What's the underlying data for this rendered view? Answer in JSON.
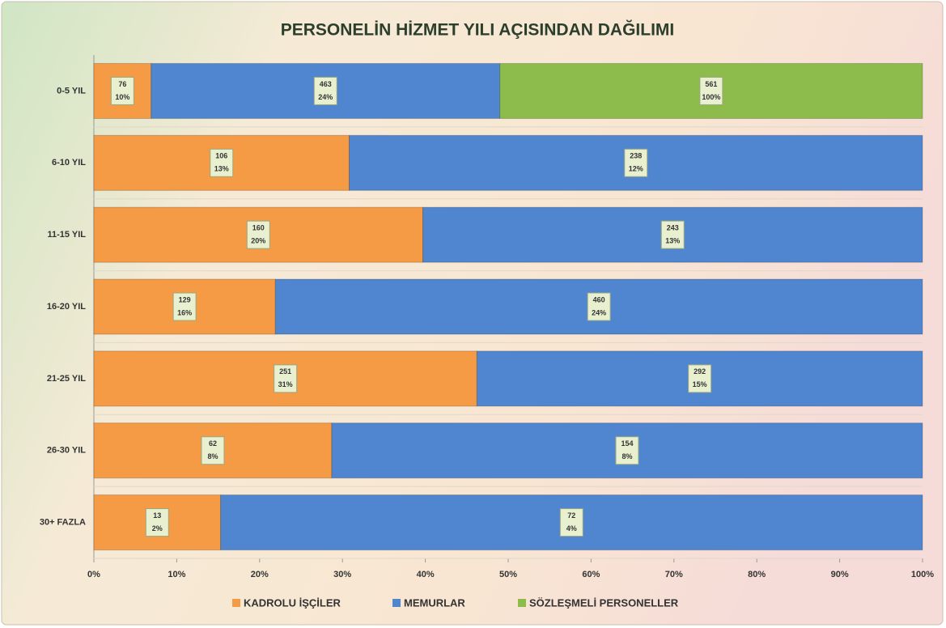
{
  "chart_data": {
    "type": "stacked-bar-100",
    "orientation": "horizontal",
    "title": "PERSONELİN  HİZMET YILI AÇISINDAN DAĞILIMI",
    "categories": [
      "0-5 YIL",
      "6-10 YIL",
      "11-15 YIL",
      "16-20 YIL",
      "21-25 YIL",
      "26-30 YIL",
      "30+ FAZLA"
    ],
    "series": [
      {
        "name": "KADROLU İŞÇİLER",
        "color": "#f59a45",
        "values": [
          76,
          106,
          160,
          129,
          251,
          62,
          13
        ],
        "percent_labels": [
          "10%",
          "13%",
          "20%",
          "16%",
          "31%",
          "8%",
          "2%"
        ]
      },
      {
        "name": "MEMURLAR",
        "color": "#4f86cf",
        "values": [
          463,
          238,
          243,
          460,
          292,
          154,
          72
        ],
        "percent_labels": [
          "24%",
          "12%",
          "13%",
          "24%",
          "15%",
          "8%",
          "4%"
        ]
      },
      {
        "name": "SÖZLEŞMELİ PERSONELLER",
        "color": "#8dbb4c",
        "values": [
          561,
          null,
          null,
          null,
          null,
          null,
          null
        ],
        "percent_labels": [
          "100%",
          null,
          null,
          null,
          null,
          null,
          null
        ]
      }
    ],
    "xlim": [
      0,
      100
    ],
    "xticks": [
      {
        "value": 0,
        "label": "0%"
      },
      {
        "value": 10,
        "label": "10%"
      },
      {
        "value": 20,
        "label": "20%"
      },
      {
        "value": 30,
        "label": "30%"
      },
      {
        "value": 40,
        "label": "40%"
      },
      {
        "value": 50,
        "label": "50%"
      },
      {
        "value": 60,
        "label": "60%"
      },
      {
        "value": 70,
        "label": "70%"
      },
      {
        "value": 80,
        "label": "80%"
      },
      {
        "value": 90,
        "label": "90%"
      },
      {
        "value": 100,
        "label": "100%"
      }
    ],
    "legend": "bottom"
  }
}
